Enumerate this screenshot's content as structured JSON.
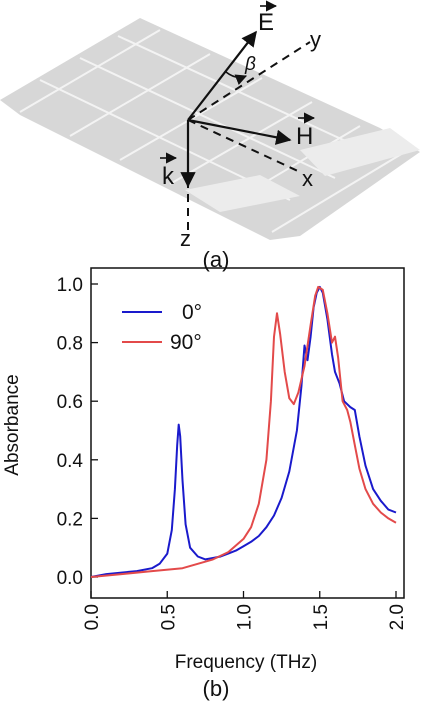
{
  "diagram": {
    "panel_label": "(a)",
    "vectors": {
      "E": "E",
      "H": "H",
      "k": "k",
      "beta": "β"
    },
    "axes": {
      "x": "x",
      "y": "y",
      "z": "z"
    }
  },
  "chart_data": {
    "type": "line",
    "panel_label": "(b)",
    "xlabel": "Frequency (THz)",
    "ylabel": "Absorbance",
    "xlim": [
      0.0,
      2.0
    ],
    "ylim": [
      0.0,
      1.0
    ],
    "x_ticks": [
      "0.0",
      "0.5",
      "1.0",
      "1.5",
      "2.0"
    ],
    "y_ticks": [
      "0.0",
      "0.2",
      "0.4",
      "0.6",
      "0.8",
      "1.0"
    ],
    "grid": false,
    "legend_position": "top-left",
    "series": [
      {
        "name": "0°",
        "color": "#1a1acc",
        "points": [
          [
            0.0,
            0.0
          ],
          [
            0.1,
            0.01
          ],
          [
            0.2,
            0.015
          ],
          [
            0.3,
            0.02
          ],
          [
            0.4,
            0.03
          ],
          [
            0.45,
            0.045
          ],
          [
            0.5,
            0.08
          ],
          [
            0.53,
            0.16
          ],
          [
            0.55,
            0.3
          ],
          [
            0.565,
            0.45
          ],
          [
            0.575,
            0.52
          ],
          [
            0.585,
            0.48
          ],
          [
            0.6,
            0.33
          ],
          [
            0.62,
            0.18
          ],
          [
            0.65,
            0.1
          ],
          [
            0.7,
            0.07
          ],
          [
            0.75,
            0.06
          ],
          [
            0.8,
            0.065
          ],
          [
            0.85,
            0.07
          ],
          [
            0.9,
            0.08
          ],
          [
            0.95,
            0.09
          ],
          [
            1.0,
            0.105
          ],
          [
            1.05,
            0.12
          ],
          [
            1.1,
            0.14
          ],
          [
            1.15,
            0.17
          ],
          [
            1.2,
            0.21
          ],
          [
            1.25,
            0.27
          ],
          [
            1.3,
            0.36
          ],
          [
            1.35,
            0.5
          ],
          [
            1.38,
            0.65
          ],
          [
            1.4,
            0.79
          ],
          [
            1.42,
            0.74
          ],
          [
            1.44,
            0.82
          ],
          [
            1.46,
            0.92
          ],
          [
            1.48,
            0.97
          ],
          [
            1.5,
            0.99
          ],
          [
            1.52,
            0.97
          ],
          [
            1.55,
            0.88
          ],
          [
            1.58,
            0.76
          ],
          [
            1.6,
            0.7
          ],
          [
            1.63,
            0.66
          ],
          [
            1.66,
            0.6
          ],
          [
            1.7,
            0.58
          ],
          [
            1.73,
            0.57
          ],
          [
            1.76,
            0.48
          ],
          [
            1.8,
            0.38
          ],
          [
            1.85,
            0.3
          ],
          [
            1.9,
            0.26
          ],
          [
            1.95,
            0.23
          ],
          [
            2.0,
            0.22
          ]
        ]
      },
      {
        "name": "90°",
        "color": "#e34a4a",
        "points": [
          [
            0.0,
            0.0
          ],
          [
            0.2,
            0.01
          ],
          [
            0.4,
            0.02
          ],
          [
            0.6,
            0.03
          ],
          [
            0.7,
            0.045
          ],
          [
            0.8,
            0.06
          ],
          [
            0.9,
            0.085
          ],
          [
            1.0,
            0.13
          ],
          [
            1.05,
            0.17
          ],
          [
            1.1,
            0.25
          ],
          [
            1.15,
            0.4
          ],
          [
            1.18,
            0.6
          ],
          [
            1.2,
            0.82
          ],
          [
            1.22,
            0.9
          ],
          [
            1.24,
            0.83
          ],
          [
            1.27,
            0.7
          ],
          [
            1.3,
            0.61
          ],
          [
            1.33,
            0.59
          ],
          [
            1.36,
            0.63
          ],
          [
            1.4,
            0.72
          ],
          [
            1.44,
            0.86
          ],
          [
            1.47,
            0.96
          ],
          [
            1.49,
            0.99
          ],
          [
            1.52,
            0.98
          ],
          [
            1.55,
            0.9
          ],
          [
            1.58,
            0.8
          ],
          [
            1.6,
            0.82
          ],
          [
            1.62,
            0.75
          ],
          [
            1.65,
            0.6
          ],
          [
            1.68,
            0.57
          ],
          [
            1.7,
            0.53
          ],
          [
            1.73,
            0.45
          ],
          [
            1.76,
            0.37
          ],
          [
            1.8,
            0.3
          ],
          [
            1.85,
            0.25
          ],
          [
            1.9,
            0.22
          ],
          [
            1.95,
            0.2
          ],
          [
            2.0,
            0.185
          ]
        ]
      }
    ]
  }
}
